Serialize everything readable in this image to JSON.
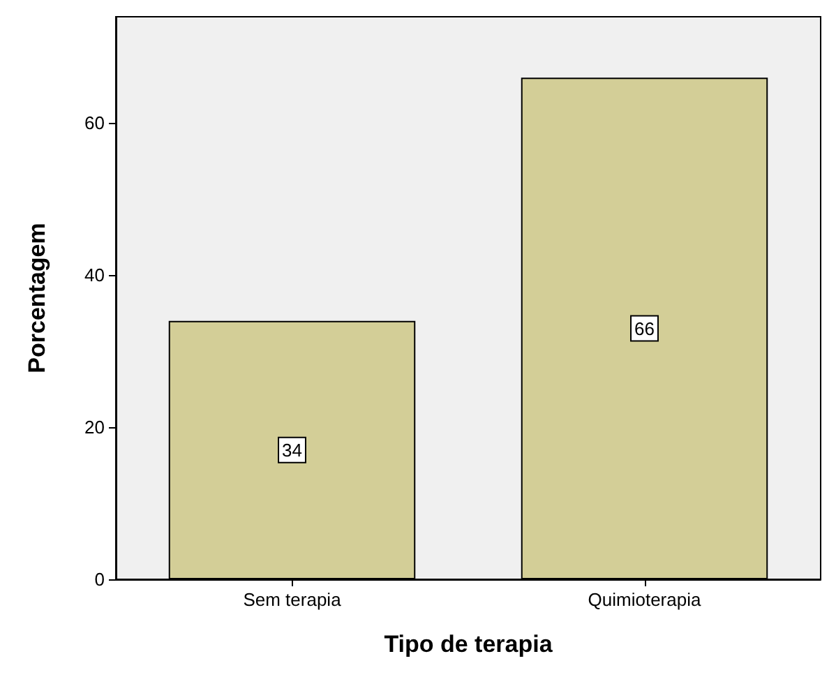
{
  "chart_data": {
    "type": "bar",
    "xlabel": "Tipo de terapia",
    "ylabel": "Porcentagem",
    "categories": [
      "Sem terapia",
      "Quimioterapia"
    ],
    "values": [
      34,
      66
    ],
    "color": "#d3ce97",
    "ylim": [
      0,
      74
    ],
    "yticks": [
      0,
      20,
      40,
      60
    ],
    "grid": false,
    "data_labels": true
  }
}
